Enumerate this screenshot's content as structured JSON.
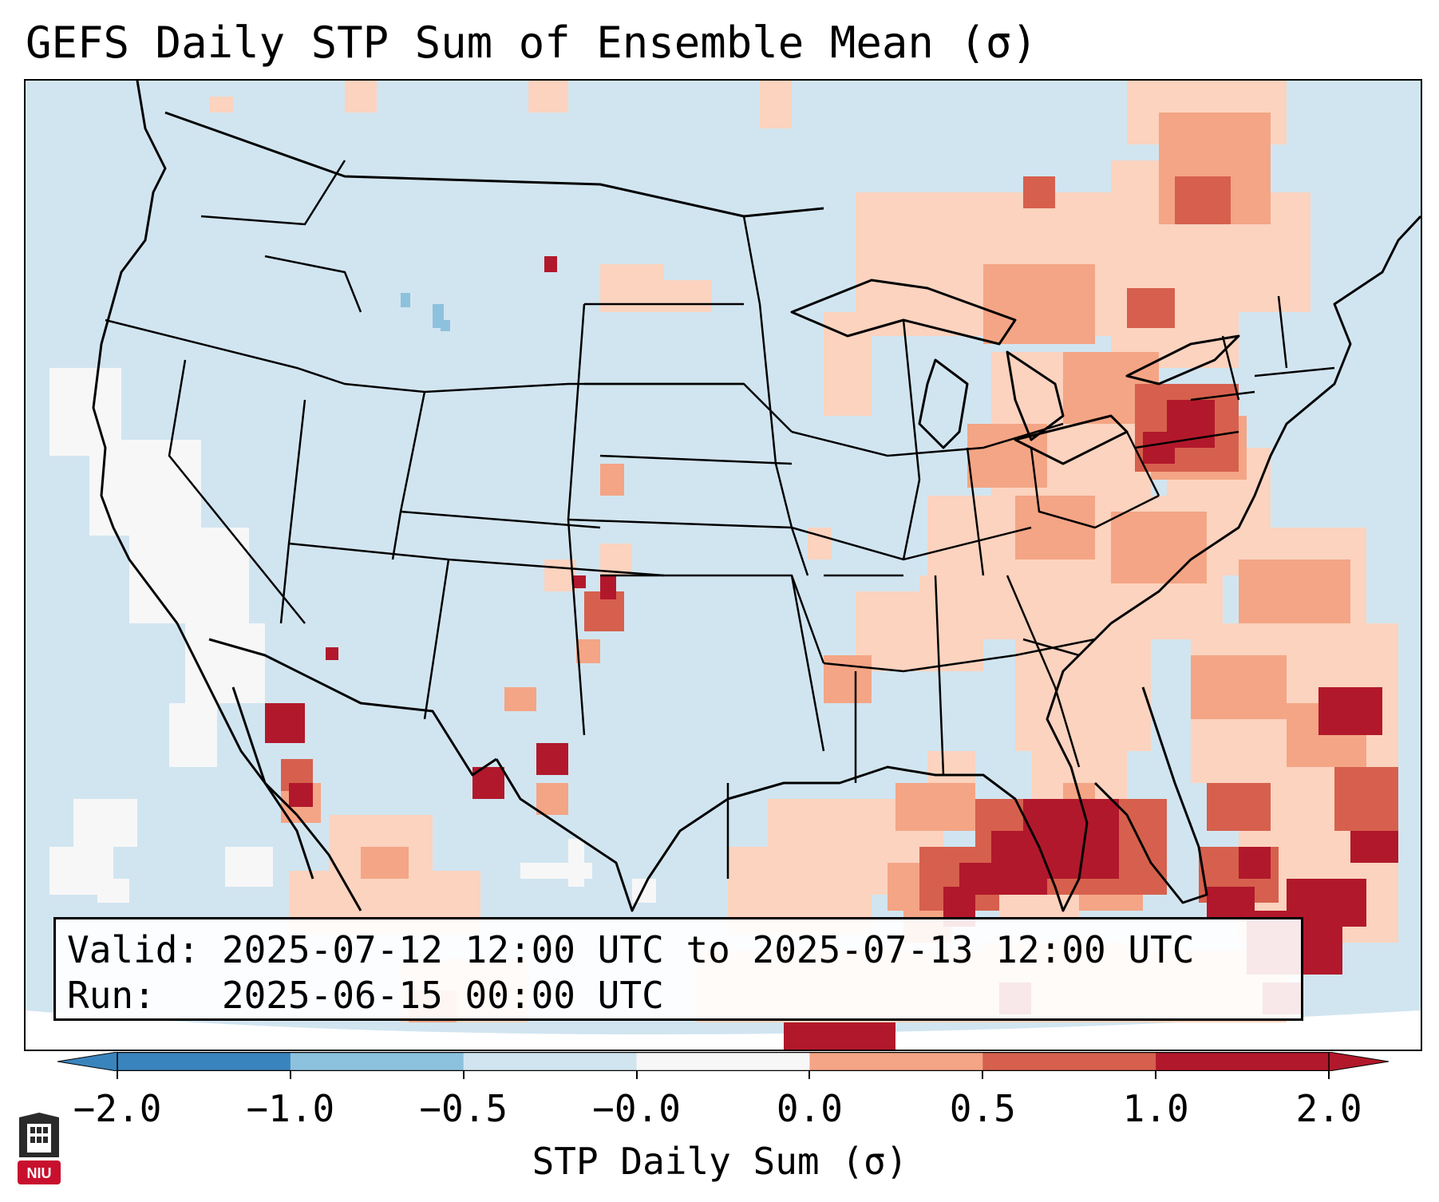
{
  "title": "GEFS Daily STP Sum of Ensemble Mean (σ)",
  "info": {
    "valid_label": "Valid:",
    "valid_value": "2025-07-12 12:00 UTC to 2025-07-13 12:00 UTC",
    "run_label": "Run:",
    "run_value": "2025-06-15 00:00 UTC"
  },
  "colorbar": {
    "label": "STP Daily Sum (σ)",
    "ticks": [
      "−2.0",
      "−1.0",
      "−0.5",
      "−0.0",
      "0.0",
      "0.5",
      "1.0",
      "2.0"
    ],
    "colors": [
      "#3a84bd",
      "#8dc2de",
      "#d1e5f0",
      "#f7f7f7",
      "#fbd3bf",
      "#f4a585",
      "#d6604d",
      "#b2182b"
    ]
  },
  "map": {
    "region": "Contiguous United States",
    "background_color": "#d1e5f0"
  },
  "logo": {
    "icon": "niu-logo-icon",
    "text": "NIU"
  }
}
